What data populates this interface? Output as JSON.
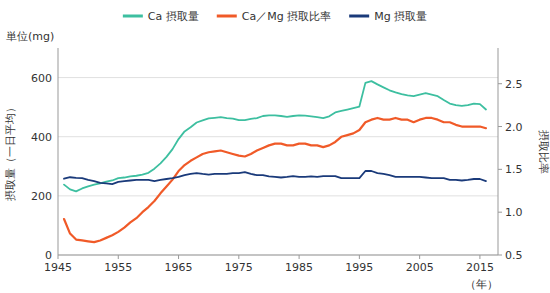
{
  "chart_data": {
    "type": "line",
    "x": [
      1946,
      1947,
      1948,
      1949,
      1950,
      1951,
      1952,
      1953,
      1954,
      1955,
      1956,
      1957,
      1958,
      1959,
      1960,
      1961,
      1962,
      1963,
      1964,
      1965,
      1966,
      1967,
      1968,
      1969,
      1970,
      1971,
      1972,
      1973,
      1974,
      1975,
      1976,
      1977,
      1978,
      1979,
      1980,
      1981,
      1982,
      1983,
      1984,
      1985,
      1986,
      1987,
      1988,
      1989,
      1990,
      1991,
      1992,
      1993,
      1994,
      1995,
      1996,
      1997,
      1998,
      1999,
      2000,
      2001,
      2002,
      2003,
      2004,
      2005,
      2006,
      2007,
      2008,
      2009,
      2010,
      2011,
      2012,
      2013,
      2014,
      2015,
      2016
    ],
    "series": [
      {
        "name": "Ca 摂取量",
        "color": "#3DBFA0",
        "values": [
          238,
          222,
          215,
          225,
          232,
          238,
          242,
          248,
          252,
          260,
          262,
          266,
          268,
          272,
          278,
          292,
          310,
          332,
          358,
          392,
          418,
          432,
          448,
          455,
          462,
          464,
          466,
          463,
          461,
          456,
          456,
          460,
          463,
          470,
          472,
          472,
          470,
          467,
          470,
          472,
          471,
          469,
          466,
          463,
          469,
          482,
          487,
          492,
          497,
          502,
          582,
          588,
          577,
          567,
          557,
          550,
          544,
          540,
          537,
          542,
          547,
          542,
          537,
          524,
          512,
          507,
          504,
          507,
          512,
          510,
          492
        ]
      },
      {
        "name": "Ca／Mg 摂取比率",
        "color": "#F05A28",
        "axis": "y2",
        "values": [
          0.92,
          0.75,
          0.68,
          0.67,
          0.66,
          0.65,
          0.67,
          0.7,
          0.73,
          0.77,
          0.82,
          0.88,
          0.93,
          1.0,
          1.06,
          1.13,
          1.22,
          1.3,
          1.38,
          1.48,
          1.55,
          1.6,
          1.64,
          1.68,
          1.7,
          1.71,
          1.72,
          1.7,
          1.68,
          1.66,
          1.65,
          1.68,
          1.72,
          1.75,
          1.78,
          1.8,
          1.8,
          1.78,
          1.78,
          1.8,
          1.8,
          1.78,
          1.78,
          1.76,
          1.78,
          1.82,
          1.88,
          1.9,
          1.92,
          1.96,
          2.05,
          2.08,
          2.1,
          2.08,
          2.08,
          2.1,
          2.08,
          2.08,
          2.05,
          2.08,
          2.1,
          2.1,
          2.08,
          2.05,
          2.05,
          2.02,
          2.0,
          2.0,
          2.0,
          2.0,
          1.98
        ]
      },
      {
        "name": "Mg 摂取量",
        "color": "#1A3A7A",
        "values": [
          258,
          263,
          261,
          260,
          254,
          250,
          244,
          242,
          240,
          247,
          250,
          252,
          254,
          254,
          254,
          250,
          254,
          257,
          260,
          264,
          270,
          274,
          277,
          274,
          272,
          274,
          274,
          274,
          277,
          277,
          280,
          274,
          270,
          270,
          266,
          264,
          262,
          264,
          267,
          264,
          264,
          266,
          264,
          267,
          267,
          267,
          260,
          260,
          260,
          260,
          284,
          284,
          277,
          274,
          270,
          264,
          264,
          264,
          264,
          264,
          262,
          260,
          260,
          260,
          254,
          254,
          252,
          254,
          257,
          257,
          250
        ]
      }
    ],
    "xlabel": "（年）",
    "ylabel": "摂取量（一日平均）",
    "y2label": "摂取比率",
    "annotations": [
      "単位(mg)"
    ],
    "xlim": [
      1945,
      2018
    ],
    "xticks": [
      1945,
      1955,
      1965,
      1975,
      1985,
      1995,
      2005,
      2015
    ],
    "ylim": [
      0,
      700
    ],
    "yticks": [
      0,
      200,
      400,
      600
    ],
    "y2lim": [
      0.5,
      2.917
    ],
    "y2ticks": [
      0.5,
      {
        "value": 1.0,
        "label": "1.0"
      },
      1.5,
      {
        "value": 2.0,
        "label": "2.0"
      },
      2.5
    ],
    "grid": true,
    "legend": "top"
  }
}
